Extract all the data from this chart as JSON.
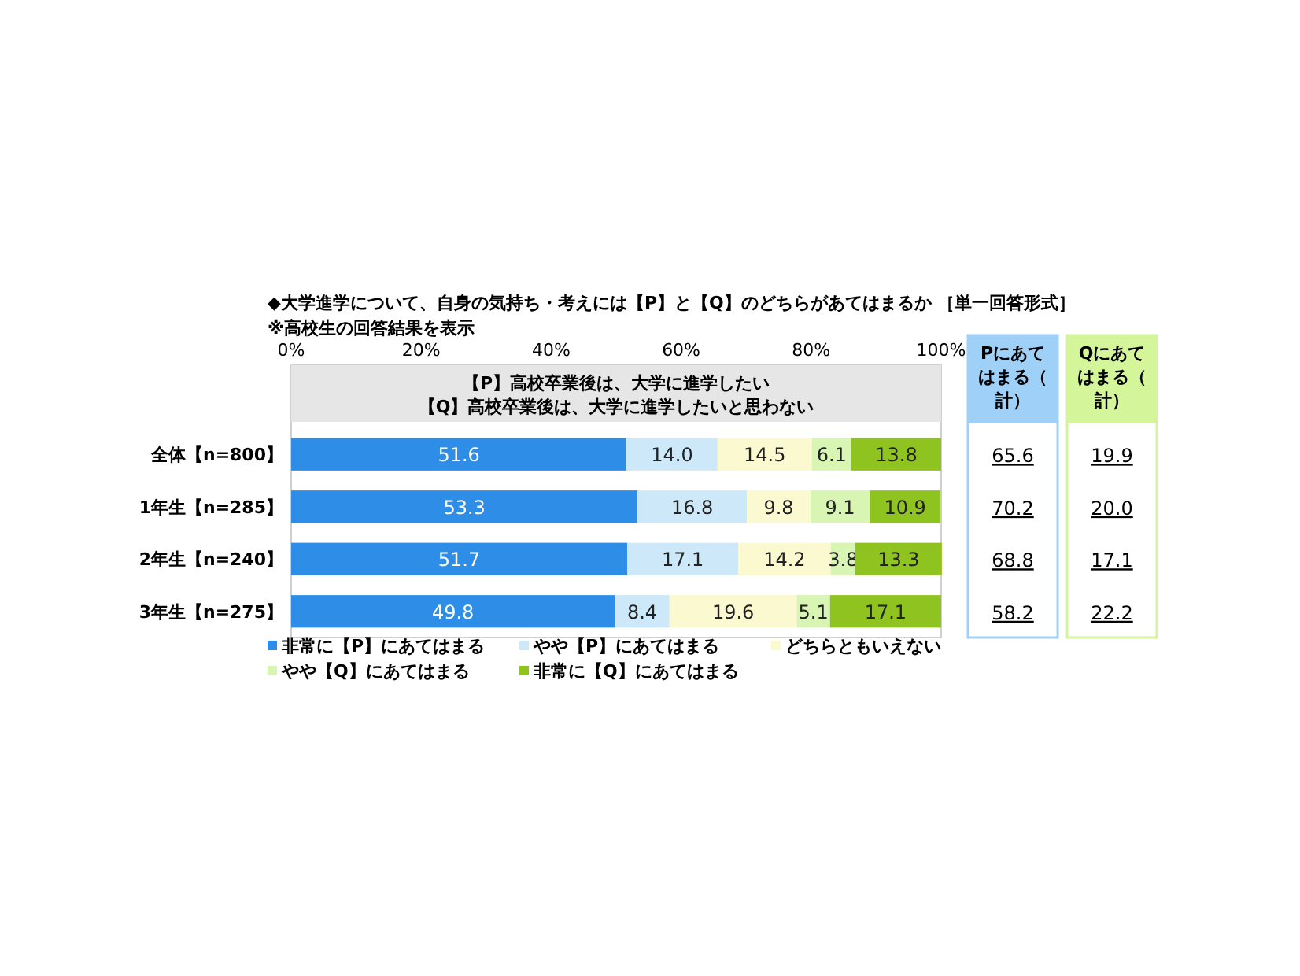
{
  "chart_data": [
    {
      "type": "bar",
      "orientation": "horizontal",
      "stacked": true,
      "title": "◆大学進学について、自身の気持ち・考えには【P】と【Q】のどちらがあてはまるか ［単一回答形式］",
      "subtitle": "※高校生の回答結果を表示",
      "annotations": [
        "【P】高校卒業後は、大学に進学したい",
        "【Q】高校卒業後は、大学に進学したいと思わない"
      ],
      "categories": [
        "全体【n=800】",
        "1年生【n=285】",
        "2年生【n=240】",
        "3年生【n=275】"
      ],
      "series": [
        {
          "name": "非常に【P】にあてはまる",
          "color": "#2e8de6",
          "values": [
            51.6,
            53.3,
            51.7,
            49.8
          ],
          "value_labels": [
            "51.6",
            "53.3",
            "51.7",
            "49.8"
          ]
        },
        {
          "name": "やや【P】にあてはまる",
          "color": "#cde9f9",
          "values": [
            14.0,
            16.8,
            17.1,
            8.4
          ],
          "value_labels": [
            "14.0",
            "16.8",
            "17.1",
            "8.4"
          ]
        },
        {
          "name": "どちらともいえない",
          "color": "#fbf9cf",
          "values": [
            14.5,
            9.8,
            14.2,
            19.6
          ],
          "value_labels": [
            "14.5",
            "9.8",
            "14.2",
            "19.6"
          ]
        },
        {
          "name": "やや【Q】にあてはまる",
          "color": "#d8f5b4",
          "values": [
            6.1,
            9.1,
            3.8,
            5.1
          ],
          "value_labels": [
            "6.1",
            "9.1",
            "3.8",
            "5.1"
          ]
        },
        {
          "name": "非常に【Q】にあてはまる",
          "color": "#8fc31f",
          "values": [
            13.8,
            10.9,
            13.3,
            17.1
          ],
          "value_labels": [
            "13.8",
            "10.9",
            "13.3",
            "17.1"
          ]
        }
      ],
      "xlim": [
        0,
        100
      ],
      "xticks": [
        {
          "value": 0,
          "label": "0%"
        },
        {
          "value": 20,
          "label": "20%"
        },
        {
          "value": 40,
          "label": "40%"
        },
        {
          "value": 60,
          "label": "60%"
        },
        {
          "value": 80,
          "label": "80%"
        },
        {
          "value": 100,
          "label": "100%"
        }
      ],
      "legend": "bottom",
      "data_labels": true
    },
    {
      "type": "other",
      "annotations": [
        "Pにあてはまる（計）",
        "Qにあてはまる（計）",
        "65.6",
        "19.9",
        "70.2",
        "20.0",
        "68.8",
        "17.1",
        "58.2",
        "22.2"
      ]
    }
  ]
}
